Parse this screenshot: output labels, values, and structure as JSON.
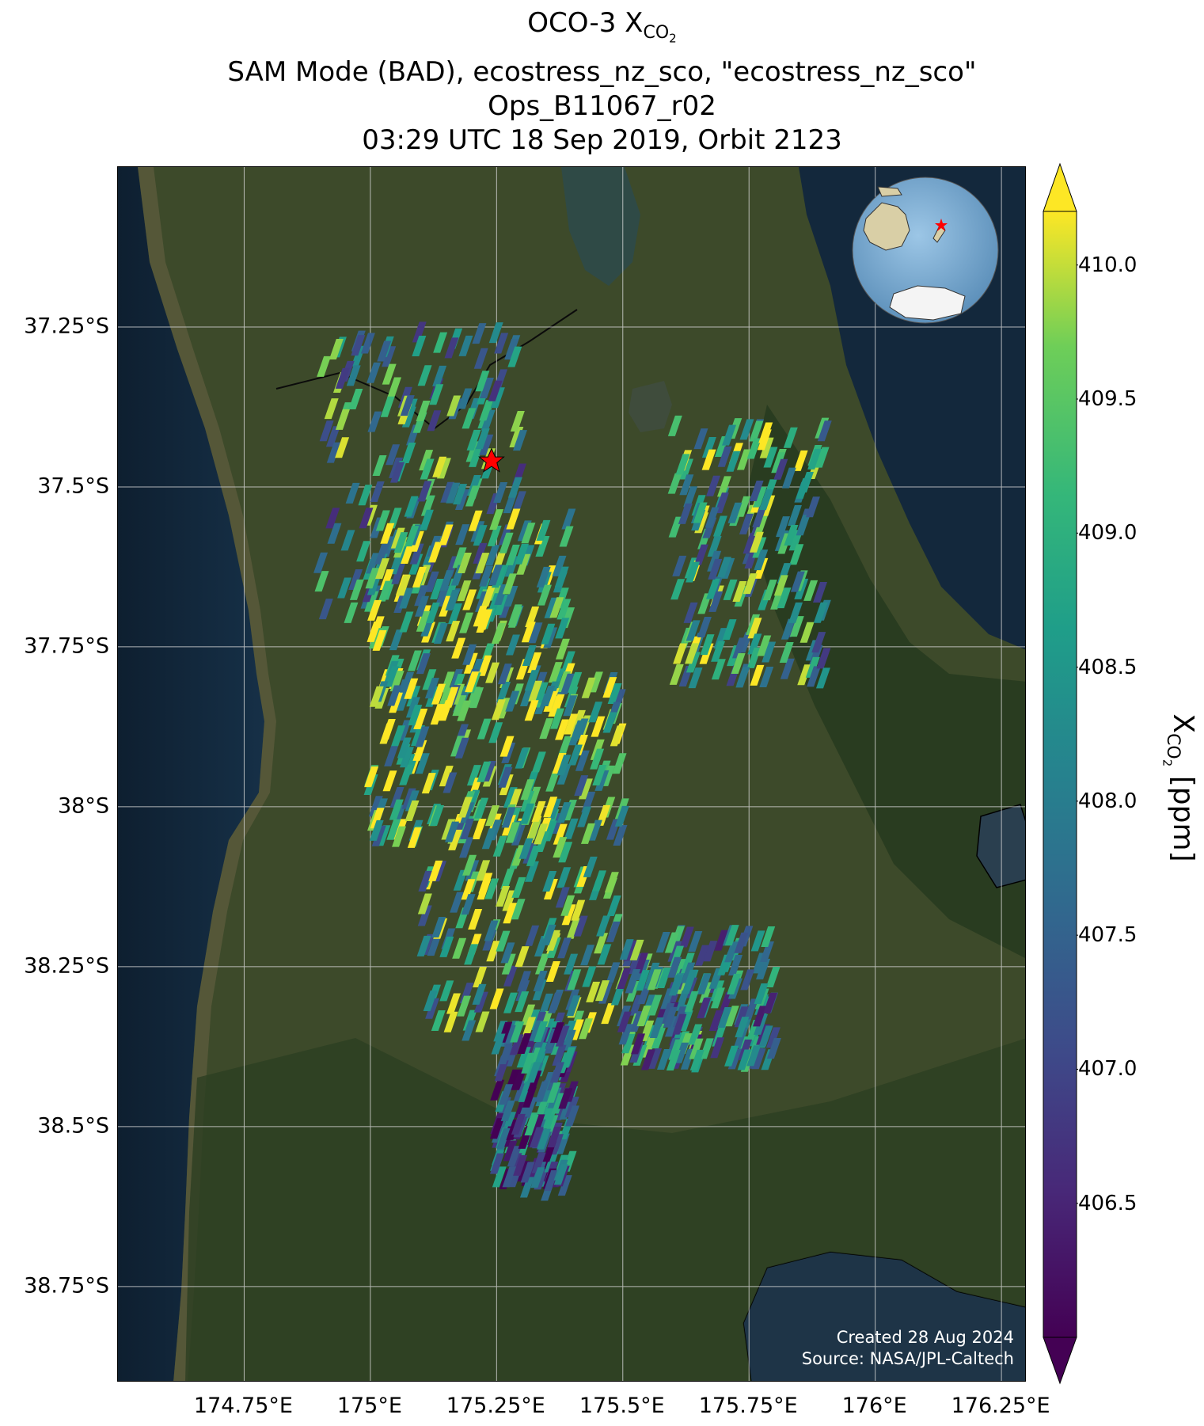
{
  "title": {
    "line1_main": "OCO-3 X",
    "line1_sub": "CO",
    "line1_sub2": "2",
    "line2": "SAM Mode (BAD), ecostress_nz_sco, \"ecostress_nz_sco\"",
    "line3": "Ops_B11067_r02",
    "line4": "03:29 UTC 18 Sep 2019, Orbit 2123"
  },
  "map": {
    "lon_range": [
      174.5,
      176.3
    ],
    "lat_range": [
      -37.0,
      -38.9
    ],
    "lat_ticks": [
      "37.25°S",
      "37.5°S",
      "37.75°S",
      "38°S",
      "38.25°S",
      "38.5°S",
      "38.75°S"
    ],
    "lon_ticks": [
      "174.75°E",
      "175°E",
      "175.25°E",
      "175.5°E",
      "175.75°E",
      "176°E",
      "176.25°E"
    ],
    "grid": true,
    "target_marker": {
      "lon": 175.24,
      "lat": -37.46,
      "color": "#ff0000",
      "shape": "star"
    },
    "inset_globe": {
      "position": "top-right",
      "marker_color": "#ff0000"
    },
    "colors": {
      "ocean": "#0f2235",
      "land": "#3d4a2a",
      "land_dark": "#263a1e",
      "lake": "#3a4a3a"
    }
  },
  "footer": {
    "created": "Created 28 Aug 2024",
    "source": "Source: NASA/JPL-Caltech"
  },
  "colorbar": {
    "label_main": "X",
    "label_sub": "CO",
    "label_sub2": "2",
    "label_unit": " [ppm]",
    "min": 406.0,
    "max": 410.2,
    "extend": "both",
    "ticks": [
      "406.5",
      "407.0",
      "407.5",
      "408.0",
      "408.5",
      "409.0",
      "409.5",
      "410.0"
    ],
    "colormap": "viridis"
  },
  "chart_data": {
    "type": "scatter",
    "variable": "XCO2 (ppm)",
    "description": "OCO-3 SAM footprints colored by XCO2, clustered around the target",
    "point_groups": [
      {
        "lon_range": [
          174.9,
          175.3
        ],
        "lat_range": [
          -37.25,
          -37.7
        ],
        "mean_xco2": 408.4
      },
      {
        "lon_range": [
          175.0,
          175.4
        ],
        "lat_range": [
          -37.55,
          -37.85
        ],
        "mean_xco2": 409.2
      },
      {
        "lon_range": [
          175.0,
          175.5
        ],
        "lat_range": [
          -37.8,
          -38.05
        ],
        "mean_xco2": 409.0
      },
      {
        "lon_range": [
          175.1,
          175.5
        ],
        "lat_range": [
          -38.0,
          -38.35
        ],
        "mean_xco2": 408.7
      },
      {
        "lon_range": [
          175.5,
          175.8
        ],
        "lat_range": [
          -38.2,
          -38.4
        ],
        "mean_xco2": 408.1
      },
      {
        "lon_range": [
          175.6,
          175.9
        ],
        "lat_range": [
          -37.4,
          -37.8
        ],
        "mean_xco2": 408.6
      },
      {
        "lon_range": [
          175.25,
          175.4
        ],
        "lat_range": [
          -38.35,
          -38.6
        ],
        "mean_xco2": 407.4
      }
    ]
  }
}
